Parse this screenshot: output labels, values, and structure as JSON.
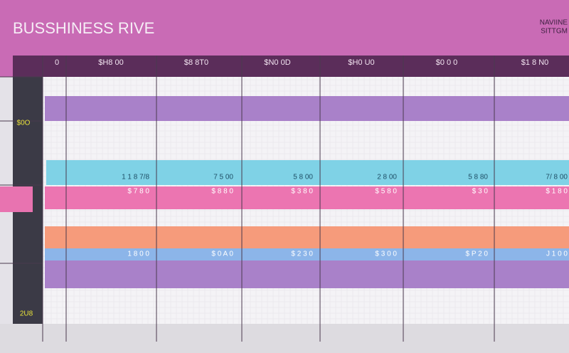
{
  "header": {
    "title": "BUSSHINESS RIVE",
    "badge": [
      "NAVIINE",
      "SITTGM"
    ]
  },
  "columns": [
    "0",
    "$H8 00",
    "$8 8T0",
    "$N0 0D",
    "$H0 U0",
    "$0 0 0",
    "$1 8 N0"
  ],
  "sidebar": [
    "$0O",
    "2U8"
  ],
  "rows": [
    {
      "labels": [
        "1 1 8 7/8",
        "7 5 00",
        "5 8 00",
        "2 8 00",
        "5 8 80",
        "7/ 8 00"
      ]
    },
    {
      "labels": [
        "$ 7 8 0",
        "$ 8 8 0",
        "$ 3 8 0",
        "$ 5 8 0",
        "$ 3 0",
        "$ 1 8 0"
      ]
    },
    {
      "labels": [
        "1 8 0 0",
        "$ 0 A 0",
        "$ 2 3 0",
        "$ 3 0 0",
        "$ P 2 0",
        "J 1 0 0"
      ]
    }
  ]
}
